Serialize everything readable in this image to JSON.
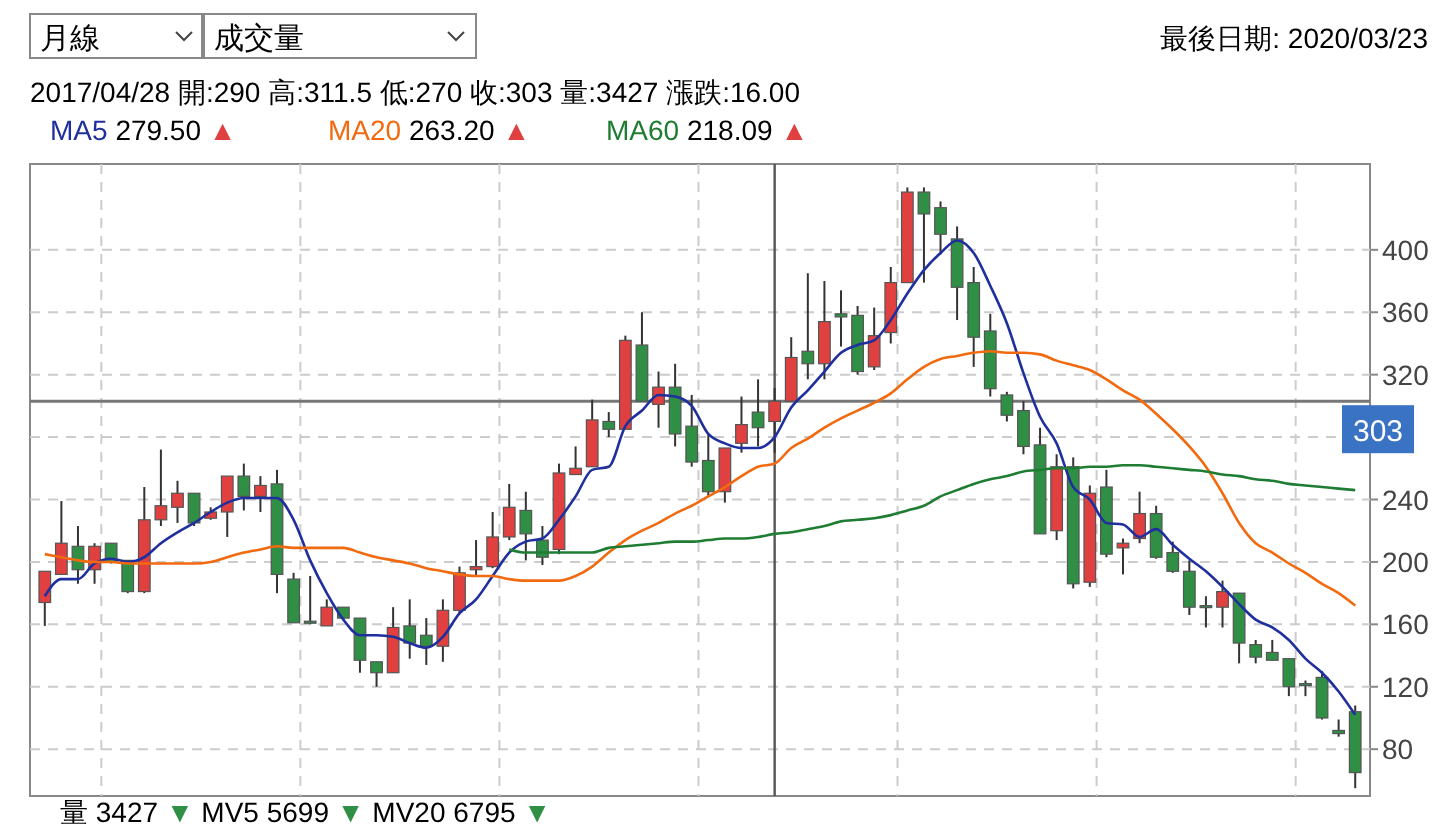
{
  "chart_data": {
    "type": "candlestick",
    "categories": [
      null,
      null,
      null,
      null,
      null,
      null,
      null,
      null,
      null,
      null,
      null,
      null,
      null,
      null,
      null,
      null,
      null,
      null,
      null,
      null,
      null,
      null,
      null,
      null,
      null,
      null,
      null,
      null,
      null,
      null,
      null,
      null,
      null,
      null,
      null,
      null,
      null,
      null,
      null,
      null,
      null,
      null,
      null,
      null,
      null,
      null,
      null,
      null,
      null,
      null,
      null,
      null,
      null,
      null,
      null,
      null,
      null,
      null,
      null,
      null,
      null,
      null,
      null,
      null,
      null,
      null,
      null,
      null,
      null,
      null,
      null,
      null,
      null,
      null,
      null,
      null,
      null,
      null,
      null,
      null
    ],
    "ohlc": [
      [
        174,
        194,
        159,
        194
      ],
      [
        192,
        239,
        192,
        212
      ],
      [
        210,
        223,
        186,
        195
      ],
      [
        195,
        212,
        186,
        210
      ],
      [
        212,
        212,
        199,
        200
      ],
      [
        201,
        201,
        180,
        181
      ],
      [
        181,
        248,
        180,
        227
      ],
      [
        227,
        272,
        223,
        236
      ],
      [
        235,
        252,
        225,
        244
      ],
      [
        244,
        244,
        223,
        225
      ],
      [
        228,
        235,
        227,
        232
      ],
      [
        232,
        255,
        216,
        255
      ],
      [
        255,
        263,
        233,
        242
      ],
      [
        242,
        255,
        232,
        249
      ],
      [
        250,
        259,
        180,
        192
      ],
      [
        189,
        193,
        161,
        161
      ],
      [
        162,
        191,
        160,
        161
      ],
      [
        159,
        176,
        159,
        171
      ],
      [
        171,
        171,
        163,
        164
      ],
      [
        164,
        164,
        129,
        137
      ],
      [
        136,
        136,
        120,
        129
      ],
      [
        129,
        171,
        129,
        158
      ],
      [
        159,
        176,
        138,
        148
      ],
      [
        153,
        164,
        134,
        146
      ],
      [
        146,
        176,
        136,
        169
      ],
      [
        169,
        197,
        167,
        193
      ],
      [
        195,
        214,
        191,
        197
      ],
      [
        197,
        232,
        196,
        216
      ],
      [
        216,
        250,
        214,
        235
      ],
      [
        233,
        245,
        201,
        218
      ],
      [
        214,
        223,
        198,
        203
      ],
      [
        208,
        263,
        205,
        257
      ],
      [
        256,
        274,
        256,
        260
      ],
      [
        261,
        304,
        261,
        291
      ],
      [
        290,
        296,
        280,
        285
      ],
      [
        285,
        345,
        285,
        342
      ],
      [
        339,
        360,
        303,
        303
      ],
      [
        301,
        322,
        286,
        312
      ],
      [
        312,
        327,
        274,
        282
      ],
      [
        287,
        307,
        261,
        264
      ],
      [
        265,
        282,
        242,
        245
      ],
      [
        245,
        273,
        238,
        273
      ],
      [
        276,
        306,
        270,
        288
      ],
      [
        296,
        317,
        274,
        286
      ],
      [
        290,
        311.5,
        270,
        303
      ],
      [
        303,
        344,
        303,
        331
      ],
      [
        335,
        385,
        317,
        327
      ],
      [
        327,
        380,
        317,
        354
      ],
      [
        359,
        374,
        338,
        357
      ],
      [
        358,
        364,
        320,
        322
      ],
      [
        325,
        363,
        323,
        345
      ],
      [
        347,
        389,
        340,
        379
      ],
      [
        379,
        440,
        379,
        437
      ],
      [
        437,
        440,
        379,
        423
      ],
      [
        427,
        431,
        397,
        410
      ],
      [
        407,
        415,
        355,
        376
      ],
      [
        379,
        389,
        325,
        344
      ],
      [
        348,
        359,
        306,
        311
      ],
      [
        307,
        309,
        290,
        294
      ],
      [
        297,
        303,
        269,
        274
      ],
      [
        275,
        286,
        218,
        218
      ],
      [
        220,
        269,
        214,
        261
      ],
      [
        261,
        267,
        183,
        186
      ],
      [
        187,
        249,
        184,
        244
      ],
      [
        248,
        259,
        203,
        205
      ],
      [
        209,
        215,
        192,
        212
      ],
      [
        215,
        245,
        212,
        231
      ],
      [
        231,
        236,
        202,
        203
      ],
      [
        206,
        213,
        193,
        194
      ],
      [
        194,
        201,
        166,
        171
      ],
      [
        172,
        178,
        158,
        171
      ],
      [
        171,
        188,
        158,
        181
      ],
      [
        180,
        180,
        135,
        148
      ],
      [
        147,
        150,
        135,
        139
      ],
      [
        142,
        150,
        137,
        137
      ],
      [
        138,
        138,
        114,
        120
      ],
      [
        122,
        124,
        114,
        121
      ],
      [
        126,
        130,
        99,
        100
      ],
      [
        92,
        99,
        88,
        90
      ],
      [
        104,
        108,
        55,
        65
      ]
    ],
    "series": [
      {
        "name": "MA5",
        "type": "line",
        "color": "#1f2f9e",
        "values": [
          178,
          189,
          189,
          199,
          202,
          200,
          203,
          212,
          219,
          225,
          232,
          238,
          241,
          241,
          241,
          227,
          201,
          180,
          163,
          153,
          153,
          152,
          148,
          145,
          152,
          167,
          176,
          191,
          206,
          213,
          215,
          227,
          242,
          259,
          261,
          287,
          297,
          307,
          306,
          300,
          282,
          276,
          273,
          273,
          280,
          299,
          310,
          322,
          334,
          339,
          342,
          355,
          372,
          387,
          398,
          406,
          398,
          377,
          353,
          321,
          293,
          276,
          248,
          240,
          225,
          224,
          216,
          221,
          211,
          202,
          194,
          184,
          173,
          163,
          158,
          150,
          138,
          129,
          117,
          102
        ]
      },
      {
        "name": "MA20",
        "type": "line",
        "color": "#f26a10",
        "values": [
          205,
          203,
          201,
          200,
          200,
          199,
          199,
          199,
          199,
          199,
          200,
          203,
          206,
          208,
          210,
          209,
          209,
          209,
          209,
          206,
          203,
          201,
          199,
          196,
          194,
          192,
          191,
          191,
          189,
          188,
          188,
          188,
          191,
          197,
          206,
          214,
          220,
          225,
          231,
          236,
          242,
          248,
          255,
          261,
          263,
          273,
          279,
          286,
          292,
          297,
          302,
          308,
          317,
          325,
          330,
          332,
          334,
          335,
          334,
          334,
          333,
          329,
          326,
          323,
          317,
          310,
          304,
          295,
          285,
          274,
          261,
          244,
          225,
          212,
          206,
          199,
          193,
          186,
          180,
          172
        ]
      },
      {
        "name": "MA60",
        "type": "line",
        "color": "#1e7d32",
        "values": [
          null,
          null,
          null,
          null,
          null,
          null,
          null,
          null,
          null,
          null,
          null,
          null,
          null,
          null,
          null,
          null,
          null,
          null,
          null,
          null,
          null,
          null,
          null,
          null,
          null,
          null,
          null,
          null,
          208,
          206,
          206,
          206,
          206,
          206,
          209,
          210,
          211,
          212,
          213,
          213,
          214,
          215,
          215,
          216,
          218,
          219,
          221,
          223,
          226,
          227,
          228,
          230,
          233,
          236,
          242,
          246,
          250,
          253,
          255,
          258,
          259,
          260,
          260,
          261,
          261,
          262,
          262,
          261,
          260,
          259,
          258,
          256,
          255,
          253,
          252,
          250,
          249,
          248,
          247,
          246
        ]
      }
    ],
    "ylim": [
      50,
      455
    ],
    "yticks": [
      80,
      120,
      160,
      200,
      240,
      {
        "value": 280,
        "label": null
      },
      320,
      360,
      400
    ],
    "grid": true,
    "tick_labels": "y",
    "legend": "top left",
    "ref_lines": [
      {
        "axis": "y",
        "value": 303,
        "label": "303",
        "color": "#777777"
      }
    ],
    "annotations": [
      "月線",
      "成交量",
      "最後日期: 2020/03/23",
      "2017/04/28  開:290  高:311.5  低:270  收:303  量:3427  漲跌:16.00",
      "279.50 ▲",
      "263.20 ▲",
      "218.09 ▲",
      "量 3427 ▼   MV5 5699 ▼   MV20 6795 ▼"
    ]
  }
}
